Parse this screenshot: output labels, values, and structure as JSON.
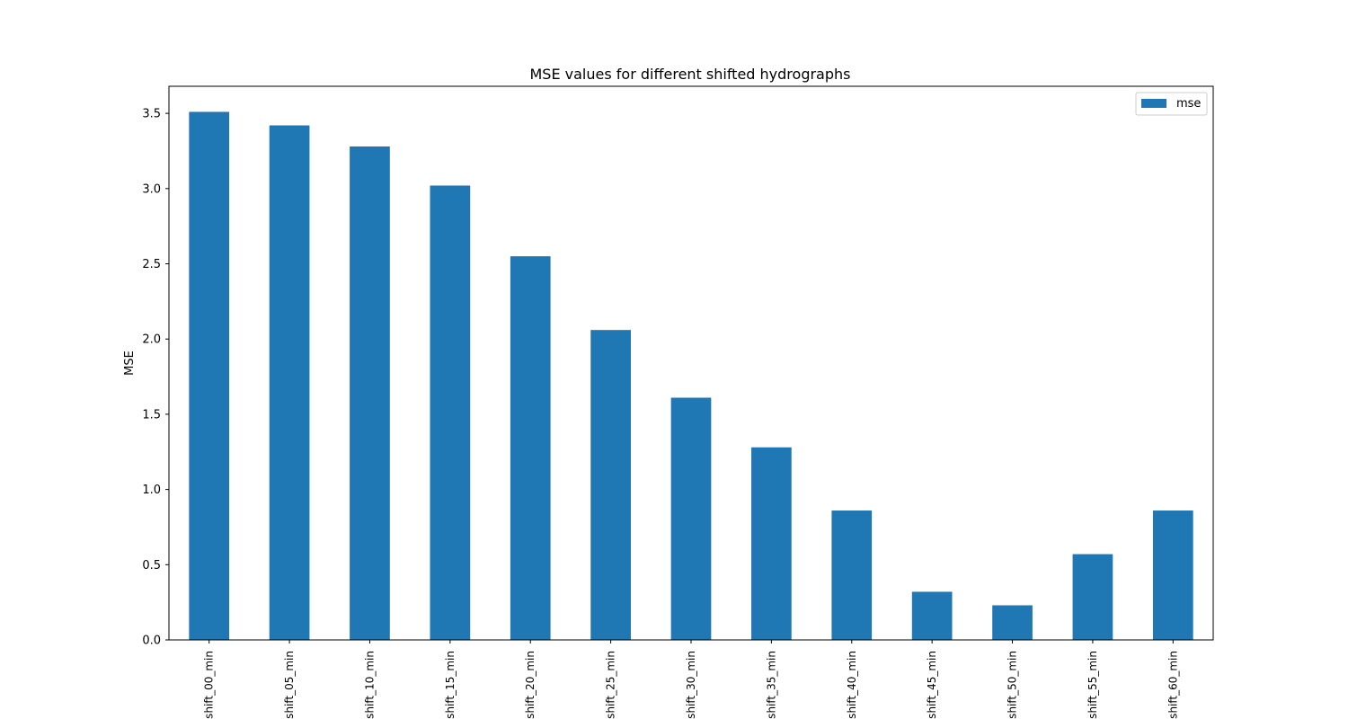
{
  "chart_data": {
    "type": "bar",
    "title": "MSE values for different shifted hydrographs",
    "xlabel": "",
    "ylabel": "MSE",
    "categories": [
      "shift_00_min",
      "shift_05_min",
      "shift_10_min",
      "shift_15_min",
      "shift_20_min",
      "shift_25_min",
      "shift_30_min",
      "shift_35_min",
      "shift_40_min",
      "shift_45_min",
      "shift_50_min",
      "shift_55_min",
      "shift_60_min"
    ],
    "series": [
      {
        "name": "mse",
        "values": [
          3.51,
          3.42,
          3.28,
          3.02,
          2.55,
          2.06,
          1.61,
          1.28,
          0.86,
          0.32,
          0.23,
          0.57,
          0.86
        ]
      }
    ],
    "ylim": [
      0,
      3.68
    ],
    "yticks": [
      0.0,
      0.5,
      1.0,
      1.5,
      2.0,
      2.5,
      3.0,
      3.5
    ],
    "ytick_labels": [
      "0.0",
      "0.5",
      "1.0",
      "1.5",
      "2.0",
      "2.5",
      "3.0",
      "3.5"
    ],
    "grid": false,
    "legend": "top-right",
    "colors": {
      "bar": "#1f77b4"
    }
  }
}
